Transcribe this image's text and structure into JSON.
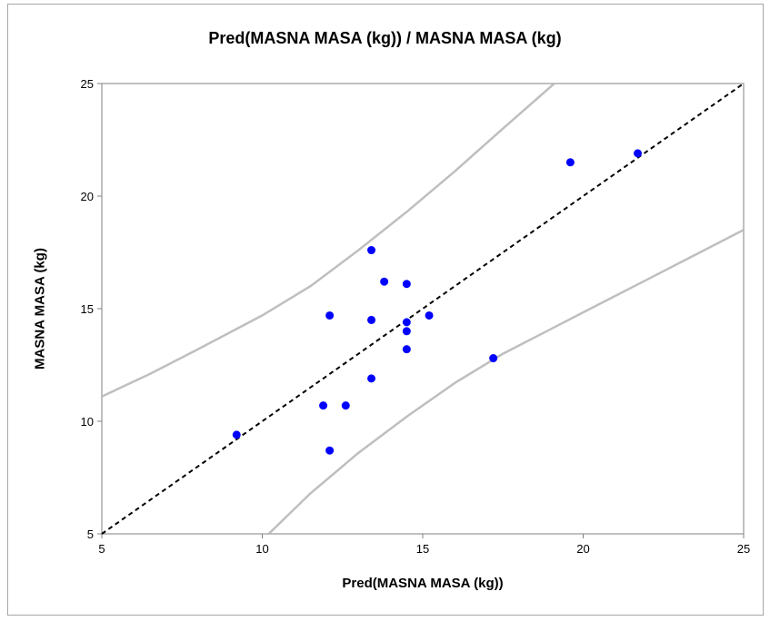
{
  "chart_data": {
    "type": "scatter",
    "title": "Pred(MASNA MASA (kg)) / MASNA MASA (kg)",
    "xlabel": "Pred(MASNA MASA (kg))",
    "ylabel": "MASNA MASA (kg)",
    "xlim": [
      5,
      25
    ],
    "ylim": [
      5,
      25
    ],
    "xticks": [
      "5",
      "10",
      "15",
      "20",
      "25"
    ],
    "yticks": [
      "5",
      "10",
      "15",
      "20",
      "25"
    ],
    "grid": false,
    "colors": {
      "points": "#0000ff",
      "reference_line": "#000000",
      "bands": "#bfbfbf"
    },
    "points": [
      {
        "x": 9.2,
        "y": 9.4
      },
      {
        "x": 11.9,
        "y": 10.7
      },
      {
        "x": 12.1,
        "y": 8.7
      },
      {
        "x": 12.1,
        "y": 14.7
      },
      {
        "x": 12.6,
        "y": 10.7
      },
      {
        "x": 13.4,
        "y": 17.6
      },
      {
        "x": 13.4,
        "y": 14.5
      },
      {
        "x": 13.4,
        "y": 11.9
      },
      {
        "x": 13.8,
        "y": 16.2
      },
      {
        "x": 14.5,
        "y": 16.1
      },
      {
        "x": 14.5,
        "y": 14.4
      },
      {
        "x": 14.5,
        "y": 14.0
      },
      {
        "x": 14.5,
        "y": 13.2
      },
      {
        "x": 15.2,
        "y": 14.7
      },
      {
        "x": 17.2,
        "y": 12.8
      },
      {
        "x": 19.6,
        "y": 21.5
      },
      {
        "x": 21.7,
        "y": 21.9
      }
    ],
    "reference_line": {
      "style": "dashed",
      "from": [
        5,
        5
      ],
      "to": [
        25,
        25
      ]
    },
    "upper_band": [
      [
        5,
        11.1
      ],
      [
        6.5,
        12.1
      ],
      [
        8,
        13.2
      ],
      [
        10,
        14.7
      ],
      [
        11.5,
        16.0
      ],
      [
        13,
        17.6
      ],
      [
        14.5,
        19.3
      ],
      [
        16,
        21.1
      ],
      [
        17.5,
        23.0
      ],
      [
        19.1,
        25.0
      ]
    ],
    "lower_band": [
      [
        10.2,
        5.0
      ],
      [
        11.5,
        6.8
      ],
      [
        13,
        8.6
      ],
      [
        14.5,
        10.2
      ],
      [
        16,
        11.7
      ],
      [
        17.5,
        13.0
      ],
      [
        19,
        14.1
      ],
      [
        20.5,
        15.2
      ],
      [
        22,
        16.3
      ],
      [
        23.5,
        17.4
      ],
      [
        25,
        18.5
      ]
    ]
  }
}
